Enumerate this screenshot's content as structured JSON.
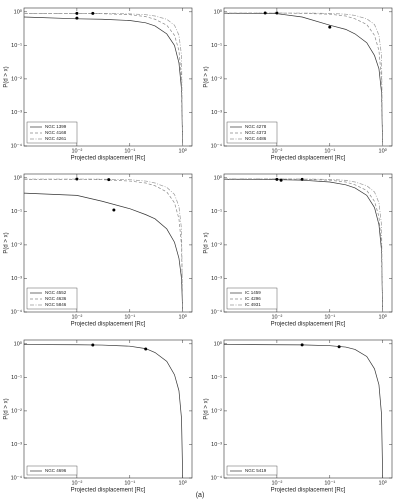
{
  "caption": "(a)",
  "chart_data": [
    {
      "type": "line",
      "xlabel": "Projected displacement [Rc]",
      "ylabel": "P(d > x)",
      "xscale": "log",
      "yscale": "log",
      "legend": "lower left",
      "xlim": [
        0.001,
        1.5
      ],
      "ylim": [
        0.0001,
        1.3
      ],
      "xticks": [
        {
          "value": 0.01,
          "label": "10⁻²"
        },
        {
          "value": 0.1,
          "label": "10⁻¹"
        },
        {
          "value": 1,
          "label": "10⁰"
        }
      ],
      "yticks": [
        {
          "value": 0.0001,
          "label": "10⁻⁴"
        },
        {
          "value": 0.001,
          "label": "10⁻³"
        },
        {
          "value": 0.01,
          "label": "10⁻²"
        },
        {
          "value": 0.1,
          "label": "10⁻¹"
        },
        {
          "value": 1,
          "label": "10⁰"
        }
      ],
      "x": [
        0.001,
        0.01,
        0.03,
        0.1,
        0.2,
        0.3,
        0.5,
        0.7,
        0.85,
        0.95,
        1.0
      ],
      "series": [
        {
          "name": "NGC 1399",
          "color": "#333333",
          "linestyle": "solid",
          "y": [
            0.7,
            0.62,
            0.6,
            0.55,
            0.47,
            0.38,
            0.22,
            0.1,
            0.03,
            0.005,
            0.0001
          ]
        },
        {
          "name": "NGC 4168",
          "color": "#888888",
          "linestyle": "dashed",
          "y": [
            0.9,
            0.9,
            0.88,
            0.82,
            0.72,
            0.6,
            0.4,
            0.2,
            0.07,
            0.01,
            0.0001
          ]
        },
        {
          "name": "NGC 4261",
          "color": "#999999",
          "linestyle": "dashdot",
          "y": [
            0.9,
            0.9,
            0.9,
            0.87,
            0.82,
            0.75,
            0.6,
            0.4,
            0.2,
            0.05,
            0.0001
          ]
        }
      ],
      "markers": {
        "color": "#000000",
        "x": [
          0.01,
          0.01,
          0.02
        ],
        "y": [
          0.9,
          0.65,
          0.9
        ]
      }
    },
    {
      "type": "line",
      "xlabel": "Projected displacement [Rc]",
      "ylabel": "P(d > x)",
      "xscale": "log",
      "yscale": "log",
      "legend": "lower left",
      "xlim": [
        0.001,
        1.5
      ],
      "ylim": [
        0.0001,
        1.3
      ],
      "xticks": [
        {
          "value": 0.01,
          "label": "10⁻²"
        },
        {
          "value": 0.1,
          "label": "10⁻¹"
        },
        {
          "value": 1,
          "label": "10⁰"
        }
      ],
      "yticks": [
        {
          "value": 0.0001,
          "label": "10⁻⁴"
        },
        {
          "value": 0.001,
          "label": "10⁻³"
        },
        {
          "value": 0.01,
          "label": "10⁻²"
        },
        {
          "value": 0.1,
          "label": "10⁻¹"
        },
        {
          "value": 1,
          "label": "10⁰"
        }
      ],
      "x": [
        0.001,
        0.01,
        0.03,
        0.1,
        0.2,
        0.3,
        0.5,
        0.7,
        0.85,
        0.95,
        1.0
      ],
      "series": [
        {
          "name": "NGC 4278",
          "color": "#333333",
          "linestyle": "solid",
          "y": [
            0.9,
            0.88,
            0.7,
            0.4,
            0.3,
            0.22,
            0.12,
            0.05,
            0.02,
            0.004,
            0.0001
          ]
        },
        {
          "name": "NGC 4373",
          "color": "#888888",
          "linestyle": "dashed",
          "y": [
            0.92,
            0.92,
            0.9,
            0.85,
            0.75,
            0.62,
            0.42,
            0.2,
            0.07,
            0.01,
            0.0001
          ]
        },
        {
          "name": "NGC 4486",
          "color": "#999999",
          "linestyle": "dashdot",
          "y": [
            0.92,
            0.92,
            0.92,
            0.9,
            0.85,
            0.78,
            0.62,
            0.42,
            0.2,
            0.05,
            0.0001
          ]
        }
      ],
      "markers": {
        "color": "#000000",
        "x": [
          0.006,
          0.01,
          0.1
        ],
        "y": [
          0.92,
          0.92,
          0.35
        ]
      }
    },
    {
      "type": "line",
      "xlabel": "Projected displacement [Rc]",
      "ylabel": "P(d > x)",
      "xscale": "log",
      "yscale": "log",
      "legend": "lower left",
      "xlim": [
        0.001,
        1.5
      ],
      "ylim": [
        0.0001,
        1.3
      ],
      "xticks": [
        {
          "value": 0.01,
          "label": "10⁻²"
        },
        {
          "value": 0.1,
          "label": "10⁻¹"
        },
        {
          "value": 1,
          "label": "10⁰"
        }
      ],
      "yticks": [
        {
          "value": 0.0001,
          "label": "10⁻⁴"
        },
        {
          "value": 0.001,
          "label": "10⁻³"
        },
        {
          "value": 0.01,
          "label": "10⁻²"
        },
        {
          "value": 0.1,
          "label": "10⁻¹"
        },
        {
          "value": 1,
          "label": "10⁰"
        }
      ],
      "x": [
        0.001,
        0.01,
        0.03,
        0.1,
        0.2,
        0.3,
        0.5,
        0.7,
        0.85,
        0.95,
        1.0
      ],
      "series": [
        {
          "name": "NGC 4552",
          "color": "#333333",
          "linestyle": "solid",
          "y": [
            0.35,
            0.3,
            0.2,
            0.12,
            0.08,
            0.06,
            0.03,
            0.012,
            0.004,
            0.001,
            0.0001
          ]
        },
        {
          "name": "NGC 4636",
          "color": "#888888",
          "linestyle": "dashed",
          "y": [
            0.9,
            0.9,
            0.88,
            0.8,
            0.7,
            0.58,
            0.38,
            0.18,
            0.06,
            0.01,
            0.0001
          ]
        },
        {
          "name": "NGC 5846",
          "color": "#999999",
          "linestyle": "dashdot",
          "y": [
            0.92,
            0.92,
            0.91,
            0.88,
            0.8,
            0.7,
            0.52,
            0.32,
            0.14,
            0.03,
            0.0001
          ]
        }
      ],
      "markers": {
        "color": "#000000",
        "x": [
          0.01,
          0.04,
          0.05
        ],
        "y": [
          0.92,
          0.88,
          0.11
        ]
      }
    },
    {
      "type": "line",
      "xlabel": "Projected displacement [Rc]",
      "ylabel": "P(d > x)",
      "xscale": "log",
      "yscale": "log",
      "legend": "lower left",
      "xlim": [
        0.001,
        1.5
      ],
      "ylim": [
        0.0001,
        1.3
      ],
      "xticks": [
        {
          "value": 0.01,
          "label": "10⁻²"
        },
        {
          "value": 0.1,
          "label": "10⁻¹"
        },
        {
          "value": 1,
          "label": "10⁰"
        }
      ],
      "yticks": [
        {
          "value": 0.0001,
          "label": "10⁻⁴"
        },
        {
          "value": 0.001,
          "label": "10⁻³"
        },
        {
          "value": 0.01,
          "label": "10⁻²"
        },
        {
          "value": 0.1,
          "label": "10⁻¹"
        },
        {
          "value": 1,
          "label": "10⁰"
        }
      ],
      "x": [
        0.001,
        0.01,
        0.03,
        0.1,
        0.2,
        0.3,
        0.5,
        0.7,
        0.85,
        0.95,
        1.0
      ],
      "series": [
        {
          "name": "IC 1459",
          "color": "#333333",
          "linestyle": "solid",
          "y": [
            0.9,
            0.88,
            0.85,
            0.75,
            0.62,
            0.5,
            0.3,
            0.13,
            0.04,
            0.007,
            0.0001
          ]
        },
        {
          "name": "IC 4296",
          "color": "#888888",
          "linestyle": "dashed",
          "y": [
            0.92,
            0.92,
            0.9,
            0.85,
            0.75,
            0.62,
            0.42,
            0.2,
            0.07,
            0.01,
            0.0001
          ]
        },
        {
          "name": "IC 4931",
          "color": "#999999",
          "linestyle": "dashdot",
          "y": [
            0.93,
            0.93,
            0.92,
            0.9,
            0.84,
            0.75,
            0.58,
            0.38,
            0.18,
            0.04,
            0.0001
          ]
        }
      ],
      "markers": {
        "color": "#000000",
        "x": [
          0.01,
          0.012,
          0.03
        ],
        "y": [
          0.9,
          0.85,
          0.9
        ]
      }
    },
    {
      "type": "line",
      "xlabel": "Projected displacement [Rc]",
      "ylabel": "P(d > x)",
      "xscale": "log",
      "yscale": "log",
      "legend": "lower left",
      "xlim": [
        0.001,
        1.5
      ],
      "ylim": [
        0.0001,
        1.3
      ],
      "xticks": [
        {
          "value": 0.01,
          "label": "10⁻²"
        },
        {
          "value": 0.1,
          "label": "10⁻¹"
        },
        {
          "value": 1,
          "label": "10⁰"
        }
      ],
      "yticks": [
        {
          "value": 0.0001,
          "label": "10⁻⁴"
        },
        {
          "value": 0.001,
          "label": "10⁻³"
        },
        {
          "value": 0.01,
          "label": "10⁻²"
        },
        {
          "value": 0.1,
          "label": "10⁻¹"
        },
        {
          "value": 1,
          "label": "10⁰"
        }
      ],
      "x": [
        0.001,
        0.01,
        0.03,
        0.1,
        0.2,
        0.3,
        0.5,
        0.7,
        0.85,
        0.95,
        1.0
      ],
      "series": [
        {
          "name": "NGC 4696",
          "color": "#333333",
          "linestyle": "solid",
          "y": [
            0.95,
            0.94,
            0.92,
            0.85,
            0.72,
            0.55,
            0.3,
            0.12,
            0.04,
            0.006,
            0.0001
          ]
        }
      ],
      "markers": {
        "color": "#000000",
        "x": [
          0.02,
          0.2
        ],
        "y": [
          0.92,
          0.7
        ]
      }
    },
    {
      "type": "line",
      "xlabel": "Projected displacement [Rc]",
      "ylabel": "P(d > x)",
      "xscale": "log",
      "yscale": "log",
      "legend": "lower left",
      "xlim": [
        0.001,
        1.5
      ],
      "ylim": [
        0.0001,
        1.3
      ],
      "xticks": [
        {
          "value": 0.01,
          "label": "10⁻²"
        },
        {
          "value": 0.1,
          "label": "10⁻¹"
        },
        {
          "value": 1,
          "label": "10⁰"
        }
      ],
      "yticks": [
        {
          "value": 0.0001,
          "label": "10⁻⁴"
        },
        {
          "value": 0.001,
          "label": "10⁻³"
        },
        {
          "value": 0.01,
          "label": "10⁻²"
        },
        {
          "value": 0.1,
          "label": "10⁻¹"
        },
        {
          "value": 1,
          "label": "10⁰"
        }
      ],
      "x": [
        0.001,
        0.01,
        0.03,
        0.1,
        0.2,
        0.3,
        0.5,
        0.7,
        0.85,
        0.95,
        1.0
      ],
      "series": [
        {
          "name": "NGC 5419",
          "color": "#333333",
          "linestyle": "solid",
          "y": [
            0.95,
            0.94,
            0.93,
            0.88,
            0.8,
            0.68,
            0.42,
            0.18,
            0.06,
            0.008,
            0.0001
          ]
        }
      ],
      "markers": {
        "color": "#000000",
        "x": [
          0.03,
          0.15
        ],
        "y": [
          0.93,
          0.82
        ]
      }
    }
  ]
}
